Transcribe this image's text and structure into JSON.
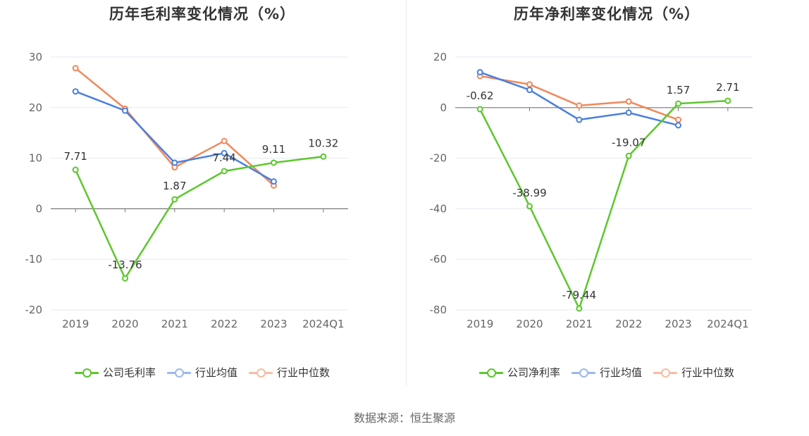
{
  "source_text": "数据来源：恒生聚源",
  "chart_data": [
    {
      "type": "line",
      "title": "历年毛利率变化情况（%）",
      "categories": [
        "2019",
        "2020",
        "2021",
        "2022",
        "2023",
        "2024Q1"
      ],
      "ylim": [
        -20,
        30
      ],
      "yticks": [
        30,
        20,
        10,
        0,
        -10,
        -20
      ],
      "grid": true,
      "legend_position": "bottom",
      "series": [
        {
          "name": "公司毛利率",
          "color": "#5cc72e",
          "values": [
            7.71,
            -13.76,
            1.87,
            7.44,
            9.11,
            10.32
          ],
          "labels": [
            "7.71",
            "-13.76",
            "1.87",
            "7.44",
            "9.11",
            "10.32"
          ]
        },
        {
          "name": "行业均值",
          "color": "#4a7fe0",
          "values": [
            23.2,
            19.4,
            9.1,
            11.0,
            5.4,
            null
          ]
        },
        {
          "name": "行业中位数",
          "color": "#f0885a",
          "values": [
            27.8,
            19.8,
            8.2,
            13.4,
            4.6,
            null
          ]
        }
      ]
    },
    {
      "type": "line",
      "title": "历年净利率变化情况（%）",
      "categories": [
        "2019",
        "2020",
        "2021",
        "2022",
        "2023",
        "2024Q1"
      ],
      "ylim": [
        -80,
        20
      ],
      "yticks": [
        20,
        0,
        -20,
        -40,
        -60,
        -80
      ],
      "grid": true,
      "legend_position": "bottom",
      "series": [
        {
          "name": "公司净利率",
          "color": "#5cc72e",
          "values": [
            -0.62,
            -38.99,
            -79.44,
            -19.07,
            1.57,
            2.71
          ],
          "labels": [
            "-0.62",
            "-38.99",
            "-79.44",
            "-19.07",
            "1.57",
            "2.71"
          ]
        },
        {
          "name": "行业均值",
          "color": "#4a7fe0",
          "values": [
            14.0,
            7.0,
            -4.8,
            -2.0,
            -7.0,
            null
          ]
        },
        {
          "name": "行业中位数",
          "color": "#f0885a",
          "values": [
            12.5,
            9.2,
            0.8,
            2.4,
            -4.8,
            null
          ]
        }
      ]
    }
  ]
}
